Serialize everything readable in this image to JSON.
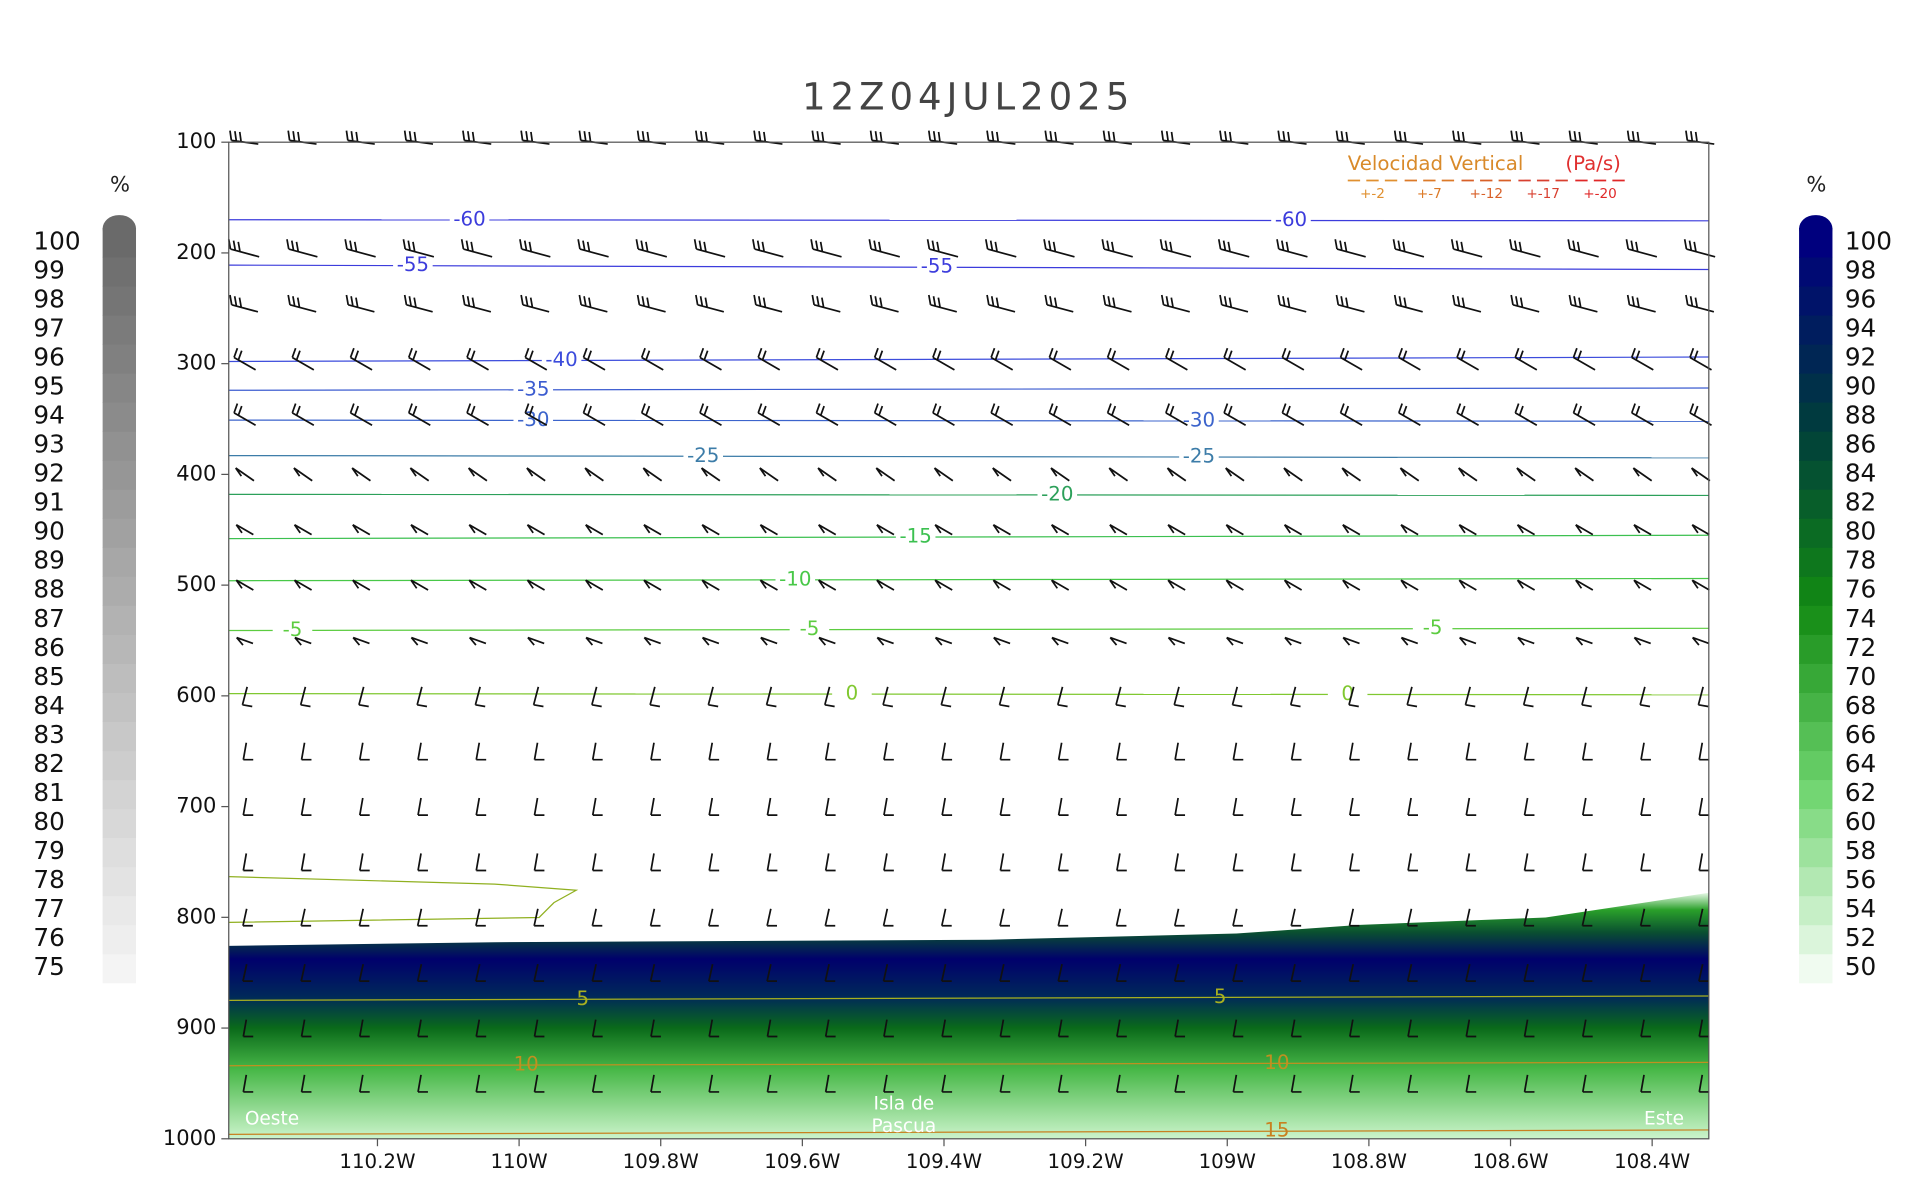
{
  "chart_data": {
    "type": "cross-section",
    "title": "12Z04JUL2025",
    "xlim": [
      -110.41,
      -108.32
    ],
    "ylim": [
      1000,
      100
    ],
    "yticks": [
      100,
      200,
      300,
      400,
      500,
      600,
      700,
      800,
      900,
      1000
    ],
    "xticks": [
      {
        "value": -110.2,
        "label": "110.2W"
      },
      {
        "value": -110.0,
        "label": "110W"
      },
      {
        "value": -109.8,
        "label": "109.8W"
      },
      {
        "value": -109.6,
        "label": "109.6W"
      },
      {
        "value": -109.4,
        "label": "109.4W"
      },
      {
        "value": -109.2,
        "label": "109.2W"
      },
      {
        "value": -109.0,
        "label": "109W"
      },
      {
        "value": -108.8,
        "label": "108.8W"
      },
      {
        "value": -108.6,
        "label": "108.6W"
      },
      {
        "value": -108.4,
        "label": "108.4W"
      }
    ],
    "contours": [
      {
        "level": -60,
        "color": "#3c3cdc",
        "pressure": [
          170,
          171
        ],
        "label_x": [
          -110.07,
          -108.91
        ]
      },
      {
        "level": -55,
        "color": "#3c3cdc",
        "pressure": [
          211,
          215
        ],
        "label_x": [
          -110.15,
          -109.41
        ]
      },
      {
        "level": -40,
        "color": "#3c4cdc",
        "pressure": [
          298,
          294
        ],
        "label_x": [
          -109.94
        ]
      },
      {
        "level": -35,
        "color": "#3c5cd0",
        "pressure": [
          324,
          322
        ],
        "label_x": [
          -109.98
        ]
      },
      {
        "level": -30,
        "color": "#3c64cc",
        "pressure": [
          351,
          352
        ],
        "label_x": [
          -109.98,
          -109.04
        ]
      },
      {
        "level": -25,
        "color": "#3c7ca8",
        "pressure": [
          383,
          385
        ],
        "label_x": [
          -109.74,
          -109.04
        ]
      },
      {
        "level": -20,
        "color": "#2ca05a",
        "pressure": [
          418,
          419
        ],
        "label_x": [
          -109.24
        ]
      },
      {
        "level": -15,
        "color": "#3cc050",
        "pressure": [
          458,
          455
        ],
        "label_x": [
          -109.44
        ]
      },
      {
        "level": -10,
        "color": "#48c848",
        "pressure": [
          496,
          494
        ],
        "label_x": [
          -109.61
        ]
      },
      {
        "level": -5,
        "color": "#5ccc40",
        "pressure": [
          541,
          539
        ],
        "label_x": [
          -110.32,
          -109.59,
          -108.71
        ]
      },
      {
        "level": 0,
        "color": "#80c830",
        "pressure": [
          598,
          599
        ],
        "label_x": [
          -109.53,
          -108.83
        ]
      },
      {
        "level": 5,
        "color": "#a8b020",
        "pressure": [
          875,
          871
        ],
        "label_x": [
          -109.91,
          -109.01
        ]
      },
      {
        "level": 10,
        "color": "#c09020",
        "pressure": [
          934,
          931
        ],
        "label_x": [
          -109.99,
          -108.93
        ]
      },
      {
        "level": 15,
        "color": "#c88020",
        "pressure": [
          996,
          992
        ],
        "label_x": [
          -108.93
        ]
      }
    ],
    "legend": {
      "title": "Velocidad Vertical",
      "unit": "(Pa/s)",
      "items": [
        {
          "label": "+-2",
          "color": "#e09030"
        },
        {
          "label": "+-7",
          "color": "#dc7a28"
        },
        {
          "label": "+-12",
          "color": "#d86028"
        },
        {
          "label": "+-17",
          "color": "#d84030"
        },
        {
          "label": "+-20",
          "color": "#e02828"
        }
      ]
    },
    "annotations": [
      "Oeste",
      "Isla de",
      "Pascua",
      "Este"
    ],
    "colorbars": [
      {
        "side": "left",
        "label": "%",
        "ticks": [
          75,
          76,
          77,
          78,
          79,
          80,
          81,
          82,
          83,
          84,
          85,
          86,
          87,
          88,
          89,
          90,
          91,
          92,
          93,
          94,
          95,
          96,
          97,
          98,
          99,
          100
        ],
        "colors": [
          "#f4f4f4",
          "#6a6a6a"
        ]
      },
      {
        "side": "right",
        "label": "%",
        "ticks": [
          50,
          52,
          54,
          56,
          58,
          60,
          62,
          64,
          66,
          68,
          70,
          72,
          74,
          76,
          78,
          80,
          82,
          84,
          86,
          88,
          90,
          92,
          94,
          96,
          98,
          100
        ],
        "colors": [
          "#f0fbf0",
          "#6ed46e",
          "#138a13",
          "#003c3c",
          "#00007e"
        ]
      }
    ]
  }
}
